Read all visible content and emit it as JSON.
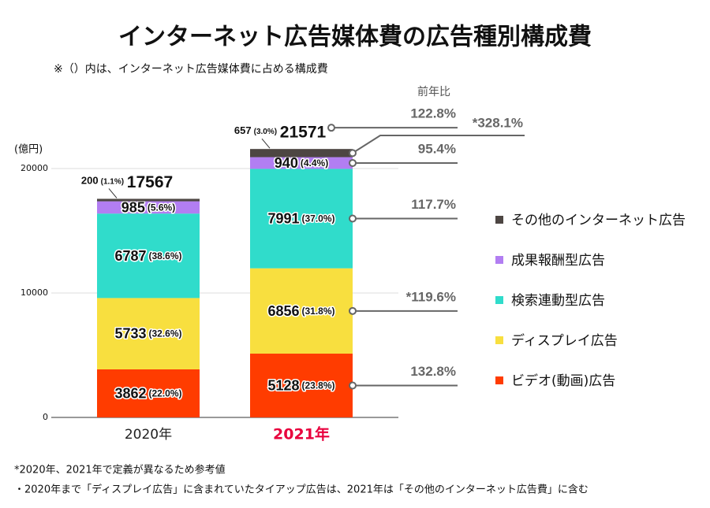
{
  "chart_data": {
    "type": "stacked-bar",
    "title": "インターネット広告媒体費の広告種別構成費",
    "subtitle": "※（）内は、インターネット広告媒体費に占める構成費",
    "y_label": "(億円)",
    "categories": [
      "2020年",
      "2021年"
    ],
    "category_colors": [
      "#222222",
      "#e8003d"
    ],
    "ylim": [
      0,
      25000
    ],
    "yticks": [
      0,
      10000,
      20000
    ],
    "grid": true,
    "totals": [
      17567,
      21571
    ],
    "yoy_title": "前年比",
    "total_yoy": "122.8%",
    "series": [
      {
        "name": "ビデオ(動画)広告",
        "color": "#ff3c00",
        "values": [
          3862,
          5128
        ],
        "share_labels": [
          "(22.0%)",
          "(23.8%)"
        ],
        "yoy": "132.8%"
      },
      {
        "name": "ディスプレイ広告",
        "color": "#f8df3f",
        "values": [
          5733,
          6856
        ],
        "share_labels": [
          "(32.6%)",
          "(31.8%)"
        ],
        "yoy": "*119.6%"
      },
      {
        "name": "検索連動型広告",
        "color": "#30dccb",
        "values": [
          6787,
          7991
        ],
        "share_labels": [
          "(38.6%)",
          "(37.0%)"
        ],
        "yoy": "117.7%"
      },
      {
        "name": "成果報酬型広告",
        "color": "#b27ef2",
        "values": [
          985,
          940
        ],
        "share_labels": [
          "(5.6%)",
          "(4.4%)"
        ],
        "yoy": "95.4%"
      },
      {
        "name": "その他のインターネット広告",
        "color": "#4d4643",
        "values": [
          200,
          657
        ],
        "share_labels": [
          "(1.1%)",
          "(3.0%)"
        ],
        "yoy": "*328.1%"
      }
    ],
    "footnotes": [
      "*2020年、2021年で定義が異なるため参考値",
      "・2020年まで「ディスプレイ広告」に含まれていたタイアップ広告は、2021年は「その他のインターネット広告費」に含む"
    ]
  }
}
